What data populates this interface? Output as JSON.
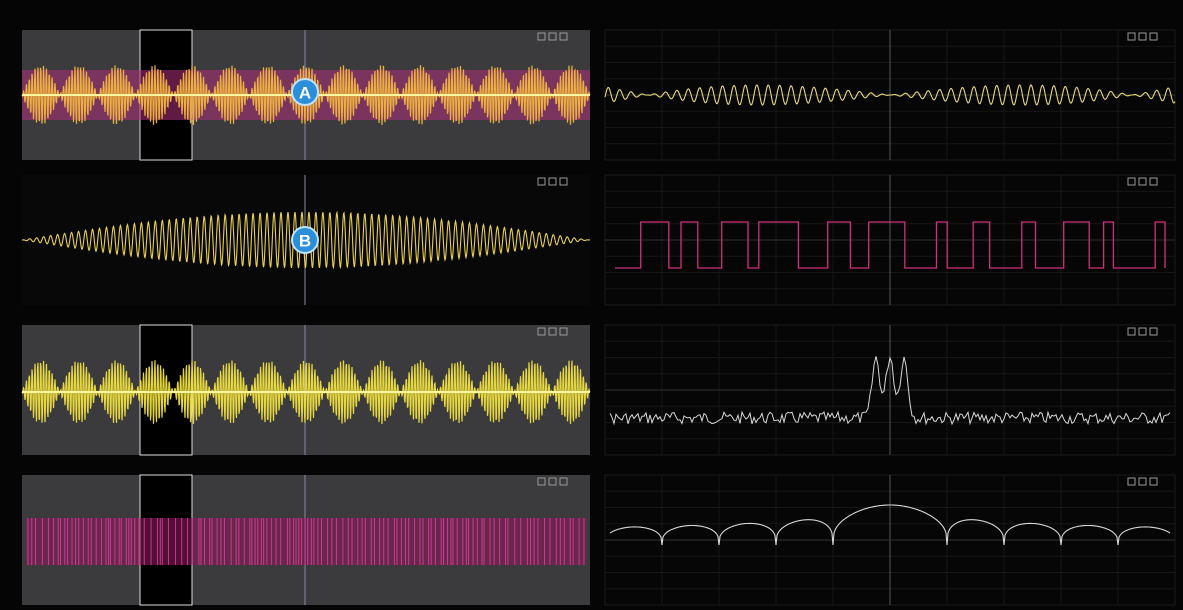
{
  "markers": {
    "a": "A",
    "b": "B"
  }
}
